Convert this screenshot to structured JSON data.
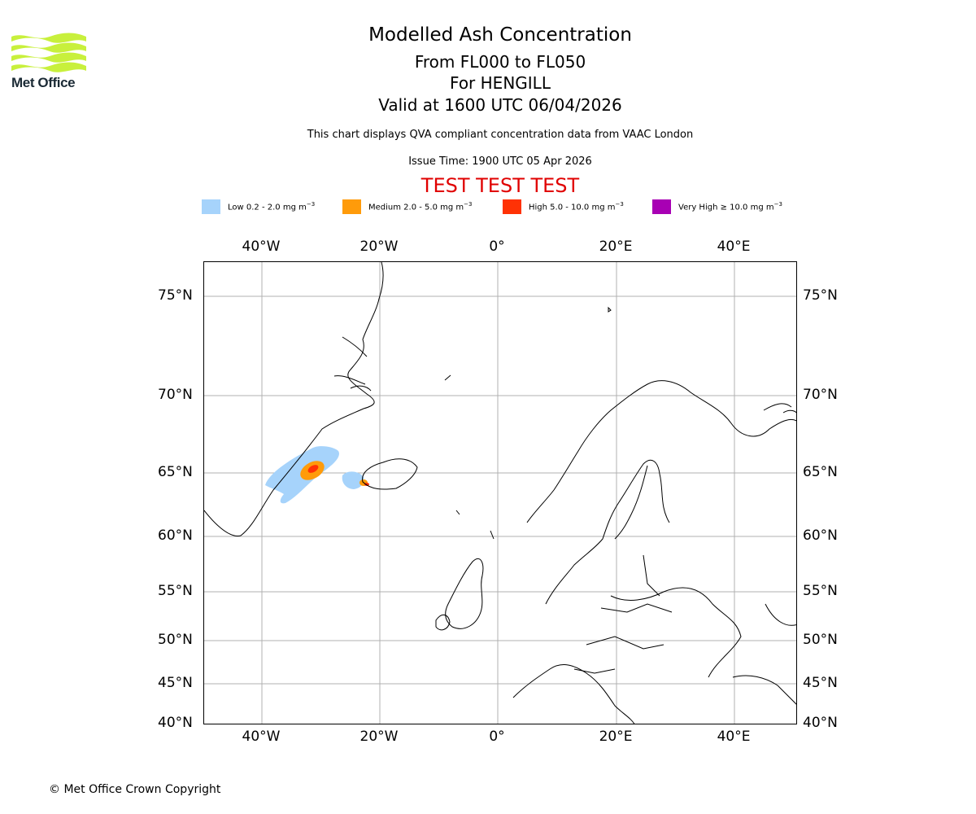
{
  "logo": {
    "name": "Met Office"
  },
  "header": {
    "title": "Modelled Ash Concentration",
    "level_range": "From FL000 to FL050",
    "volcano": "For HENGILL",
    "valid_time": "Valid at 1600 UTC 06/04/2026",
    "description": "This chart displays QVA compliant concentration data from VAAC London",
    "issue_time": "Issue Time: 1900 UTC 05 Apr 2026",
    "test_banner": "TEST TEST TEST"
  },
  "legend": [
    {
      "label": "Low 0.2 - 2.0 mg m",
      "exp": "−3",
      "color": "#a6d3fb"
    },
    {
      "label": "Medium 2.0 - 5.0 mg m",
      "exp": "−3",
      "color": "#ff9b0a"
    },
    {
      "label": "High 5.0 - 10.0 mg m",
      "exp": "−3",
      "color": "#ff3205"
    },
    {
      "label": "Very High ≥ 10.0 mg m",
      "exp": "−3",
      "color": "#a800b4"
    }
  ],
  "axes": {
    "lon_labels": [
      "40°W",
      "20°W",
      "0°",
      "20°E",
      "40°E"
    ],
    "lat_labels": [
      "75°N",
      "70°N",
      "65°N",
      "60°N",
      "55°N",
      "50°N",
      "45°N",
      "40°N"
    ]
  },
  "footer": {
    "copyright": "© Met Office Crown Copyright"
  }
}
